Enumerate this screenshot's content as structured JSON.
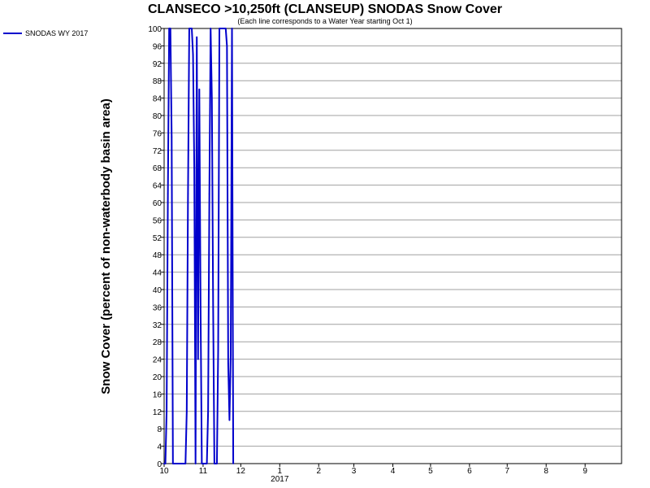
{
  "chart_data": {
    "type": "line",
    "title": "CLANSECO >10,250ft (CLANSEUP) SNODAS Snow Cover",
    "subtitle": "(Each line corresponds to a Water Year starting Oct 1)",
    "ylabel": "Snow Cover (percent of non-waterbody basin area)",
    "xlabel": "",
    "ylim": [
      0,
      100
    ],
    "yticks": [
      0,
      4,
      8,
      12,
      16,
      20,
      24,
      28,
      32,
      36,
      40,
      44,
      48,
      52,
      56,
      60,
      64,
      68,
      72,
      76,
      80,
      84,
      88,
      92,
      96,
      100
    ],
    "xlim": [
      "2016-10-01",
      "2017-09-30"
    ],
    "xticks": [
      {
        "date": "2016-10-01",
        "label": "10"
      },
      {
        "date": "2016-11-01",
        "label": "11"
      },
      {
        "date": "2016-12-01",
        "label": "12"
      },
      {
        "date": "2017-01-01",
        "label": "1"
      },
      {
        "date": "2017-02-01",
        "label": "2"
      },
      {
        "date": "2017-03-01",
        "label": "3"
      },
      {
        "date": "2017-04-01",
        "label": "4"
      },
      {
        "date": "2017-05-01",
        "label": "5"
      },
      {
        "date": "2017-06-01",
        "label": "6"
      },
      {
        "date": "2017-07-01",
        "label": "7"
      },
      {
        "date": "2017-08-01",
        "label": "8"
      },
      {
        "date": "2017-09-01",
        "label": "9"
      }
    ],
    "year_label": {
      "date": "2017-01-01",
      "label": "2017"
    },
    "grid": true,
    "legend_position": "top-left",
    "series": [
      {
        "name": "SNODAS WY 2017",
        "color": "#0000cc",
        "points": [
          [
            "2016-10-01",
            0
          ],
          [
            "2016-10-02",
            0
          ],
          [
            "2016-10-03",
            12
          ],
          [
            "2016-10-04",
            62
          ],
          [
            "2016-10-05",
            100
          ],
          [
            "2016-10-06",
            100
          ],
          [
            "2016-10-07",
            75
          ],
          [
            "2016-10-08",
            0
          ],
          [
            "2016-10-09",
            0
          ],
          [
            "2016-10-10",
            0
          ],
          [
            "2016-10-11",
            0
          ],
          [
            "2016-10-12",
            0
          ],
          [
            "2016-10-13",
            0
          ],
          [
            "2016-10-14",
            0
          ],
          [
            "2016-10-15",
            0
          ],
          [
            "2016-10-16",
            0
          ],
          [
            "2016-10-17",
            0
          ],
          [
            "2016-10-18",
            0
          ],
          [
            "2016-10-19",
            12
          ],
          [
            "2016-10-20",
            62
          ],
          [
            "2016-10-21",
            100
          ],
          [
            "2016-10-22",
            100
          ],
          [
            "2016-10-23",
            100
          ],
          [
            "2016-10-24",
            94
          ],
          [
            "2016-10-25",
            68
          ],
          [
            "2016-10-26",
            0
          ],
          [
            "2016-10-27",
            98
          ],
          [
            "2016-10-28",
            24
          ],
          [
            "2016-10-29",
            86
          ],
          [
            "2016-10-30",
            36
          ],
          [
            "2016-10-31",
            0
          ],
          [
            "2016-11-01",
            0
          ],
          [
            "2016-11-02",
            0
          ],
          [
            "2016-11-03",
            0
          ],
          [
            "2016-11-04",
            0
          ],
          [
            "2016-11-05",
            12
          ],
          [
            "2016-11-06",
            62
          ],
          [
            "2016-11-07",
            100
          ],
          [
            "2016-11-08",
            84
          ],
          [
            "2016-11-09",
            36
          ],
          [
            "2016-11-10",
            0
          ],
          [
            "2016-11-11",
            0
          ],
          [
            "2016-11-12",
            0
          ],
          [
            "2016-11-13",
            26
          ],
          [
            "2016-11-14",
            100
          ],
          [
            "2016-11-15",
            100
          ],
          [
            "2016-11-16",
            100
          ],
          [
            "2016-11-17",
            100
          ],
          [
            "2016-11-18",
            100
          ],
          [
            "2016-11-19",
            100
          ],
          [
            "2016-11-20",
            96
          ],
          [
            "2016-11-21",
            23
          ],
          [
            "2016-11-22",
            10
          ],
          [
            "2016-11-23",
            25
          ],
          [
            "2016-11-24",
            100
          ],
          [
            "2016-11-25",
            0
          ]
        ]
      }
    ]
  }
}
